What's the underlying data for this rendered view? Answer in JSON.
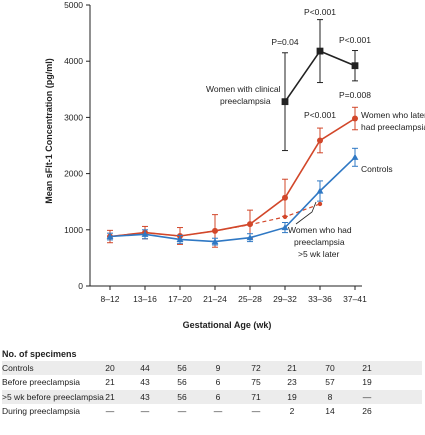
{
  "chart_data": {
    "type": "line",
    "categories": [
      "8–12",
      "13–16",
      "17–20",
      "21–24",
      "25–28",
      "29–32",
      "33–36",
      "37–41"
    ],
    "ylabel": "Mean sFlt-1 Concentration (pg/ml)",
    "xlabel": "Gestational Age (wk)",
    "ylim": [
      0,
      5000
    ],
    "yticks": [
      "0",
      "1000",
      "2000",
      "3000",
      "4000",
      "5000"
    ],
    "series": [
      {
        "name": "Controls",
        "color": "#2f78c4",
        "marker": "triangle",
        "style": "solid",
        "values": [
          880,
          920,
          830,
          790,
          860,
          1040,
          1690,
          2290
        ],
        "err": [
          60,
          80,
          70,
          60,
          70,
          90,
          180,
          160
        ]
      },
      {
        "name": "Women who later had preeclampsia",
        "color": "#d2472a",
        "marker": "circle",
        "style": "solid",
        "values": [
          880,
          950,
          890,
          980,
          1100,
          1570,
          2590,
          2980
        ],
        "err": [
          110,
          110,
          150,
          290,
          250,
          330,
          220,
          200
        ]
      },
      {
        "name": "Women who had preeclampsia >5 wk later",
        "color": "#d2472a",
        "marker": "circle",
        "style": "dashed",
        "values": [
          880,
          950,
          890,
          980,
          1090,
          1230,
          1460,
          null
        ],
        "err": [
          90,
          90,
          120,
          200,
          160,
          300,
          160,
          0
        ]
      },
      {
        "name": "Women with clinical preeclampsia",
        "color": "#222222",
        "marker": "square",
        "style": "solid",
        "values": [
          null,
          null,
          null,
          null,
          null,
          3280,
          4180,
          3920
        ],
        "err": [
          0,
          0,
          0,
          0,
          0,
          870,
          560,
          270
        ]
      }
    ],
    "annotations": {
      "p_clinical": [
        "P=0.04",
        "P<0.001",
        "P<0.001"
      ],
      "p_later": [
        "P<0.001",
        "P=0.008"
      ],
      "label_clinical": [
        "Women with clinical",
        "preeclampsia"
      ],
      "label_later": [
        "Women who later",
        "had preeclampsia"
      ],
      "label_controls": [
        "Controls"
      ],
      "label_gt5": [
        "Women who had",
        "preeclampsia",
        ">5 wk later"
      ]
    },
    "grid": false,
    "legend": "inline labels"
  },
  "table": {
    "title": "No. of specimens",
    "rows": [
      {
        "label": "Controls",
        "values": [
          "20",
          "44",
          "56",
          "9",
          "72",
          "21",
          "70",
          "21"
        ]
      },
      {
        "label": "Before preeclampsia",
        "values": [
          "21",
          "43",
          "56",
          "6",
          "75",
          "23",
          "57",
          "19"
        ]
      },
      {
        "label": ">5 wk before preeclampsia",
        "values": [
          "21",
          "43",
          "56",
          "6",
          "71",
          "19",
          "8",
          "—"
        ]
      },
      {
        "label": "During preeclampsia",
        "values": [
          "—",
          "—",
          "—",
          "—",
          "—",
          "2",
          "14",
          "26"
        ]
      }
    ]
  }
}
